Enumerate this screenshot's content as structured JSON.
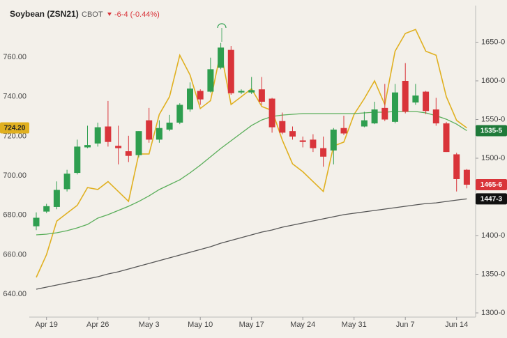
{
  "chart_data": {
    "type": "candlestick",
    "title": "Soybean (ZSN21)",
    "exchange": "CBOT",
    "change": "-6-4 (-0.44%)",
    "change_color": "#d9343a",
    "categories": [
      null,
      "Apr 19",
      null,
      null,
      null,
      null,
      "Apr 26",
      null,
      null,
      null,
      null,
      "May 3",
      null,
      null,
      null,
      null,
      "May 10",
      null,
      null,
      null,
      null,
      "May 17",
      null,
      null,
      null,
      null,
      "May 24",
      null,
      null,
      null,
      null,
      "May 31",
      null,
      null,
      null,
      null,
      "Jun 7",
      null,
      null,
      null,
      null,
      "Jun 14",
      null
    ],
    "ylim": [
      628.4,
      785.4
    ],
    "yticks": [
      {
        "value": 640,
        "label": "640.00"
      },
      {
        "value": 660,
        "label": "660.00"
      },
      {
        "value": 680,
        "label": "680.00"
      },
      {
        "value": 700,
        "label": "700.00"
      },
      {
        "value": 720,
        "label": "720.00"
      },
      {
        "value": 740,
        "label": "740.00"
      },
      {
        "value": 760,
        "label": "760.00"
      }
    ],
    "y2lim": [
      1294.6,
      1695.5
    ],
    "y2ticks": [
      {
        "value": 1300,
        "label": "1300-0"
      },
      {
        "value": 1350,
        "label": "1350-0"
      },
      {
        "value": 1400,
        "label": "1400-0"
      },
      {
        "value": 1450,
        "label": "1450-0"
      },
      {
        "value": 1500,
        "label": "1500-0"
      },
      {
        "value": 1550,
        "label": "1550-0"
      },
      {
        "value": 1600,
        "label": "1600-0"
      },
      {
        "value": 1650,
        "label": "1650-0"
      }
    ],
    "grid": false,
    "candles": {
      "axis": "y2",
      "up_color": "#2e9e4f",
      "down_color": "#d9343a",
      "open": [
        1412,
        1431,
        1437,
        1460,
        1481,
        1514,
        1519,
        1541,
        1516,
        1509,
        1504,
        1549,
        1524,
        1537,
        1546,
        1563,
        1587,
        1586,
        1617,
        1640,
        1585,
        1585,
        1589,
        1577,
        1548,
        1535,
        1523,
        1524,
        1513,
        1510,
        1539,
        null,
        1541,
        1545,
        1565,
        1547,
        1600,
        1572,
        1586,
        1563,
        1545,
        1505,
        1485
      ],
      "high": [
        1430,
        1441,
        1470,
        1485,
        1524,
        1542,
        1546,
        1574,
        1542,
        1529,
        1535,
        1565,
        1549,
        1556,
        1571,
        1598,
        1589,
        1630,
        1649,
        1645,
        1589,
        1605,
        1605,
        1578,
        1559,
        1541,
        1528,
        1531,
        1528,
        1539,
        1555,
        null,
        1560,
        1573,
        1596,
        1596,
        1623,
        1596,
        1587,
        1578,
        1547,
        1507,
        1486
      ],
      "low": [
        1407,
        1429,
        1434,
        1457,
        1479,
        1513,
        1515,
        1515,
        1492,
        1495,
        1501,
        1520,
        1520,
        1535,
        1544,
        1560,
        1569,
        1585,
        1615,
        1582,
        1583,
        1583,
        1569,
        1533,
        1531,
        1524,
        1514,
        1508,
        1489,
        1492,
        1530,
        null,
        1540,
        1544,
        1548,
        1545,
        1558,
        1569,
        1557,
        1542,
        1508,
        1457,
        1461
      ],
      "close": [
        1423,
        1438,
        1459,
        1480,
        1515,
        1517,
        1540,
        1521,
        1513,
        1503,
        1535,
        1524,
        1539,
        1546,
        1569,
        1590,
        1576,
        1615,
        1643,
        1584,
        1587,
        1588,
        1573,
        1540,
        1533,
        1528,
        1521,
        1513,
        1502,
        1537,
        1532,
        null,
        1549,
        1563,
        1550,
        1585,
        1560,
        1581,
        1561,
        1545,
        1508,
        1473,
        1465.75
      ],
      "last_label": "1465-6"
    },
    "lines": [
      {
        "axis": "y",
        "color": "#e0b020",
        "label_text_color": "#222",
        "last_label": "724.20",
        "values": [
          648.5,
          660,
          677,
          681,
          685,
          694,
          693,
          697,
          692,
          687,
          711,
          711,
          731,
          740,
          761,
          751,
          734,
          738,
          763,
          736,
          740,
          744,
          735,
          733,
          718,
          706,
          702,
          697,
          692,
          715,
          717,
          731,
          739,
          748,
          736,
          763,
          772,
          774,
          763,
          761,
          740,
          728,
          724.2
        ]
      },
      {
        "axis": "y2",
        "color": "#5aae5a",
        "badge_color": "#1f7a3a",
        "label_text_color": "#fff",
        "last_label": "1535-5",
        "values": [
          1400.9,
          1401.8,
          1403.6,
          1406.3,
          1409.9,
          1414.4,
          1422.5,
          1427,
          1432.4,
          1437.8,
          1444.1,
          1451.3,
          1459.5,
          1465.8,
          1472.1,
          1481.1,
          1491,
          1501.8,
          1512.6,
          1522.5,
          1532.4,
          1542.3,
          1549.5,
          1554,
          1555.8,
          1556.8,
          1557.7,
          1557.7,
          1557.7,
          1557.7,
          1557.7,
          1557.7,
          1558.6,
          1559.5,
          1559.5,
          1560.4,
          1560.4,
          1560.4,
          1558.6,
          1555,
          1550.4,
          1544.1,
          1535.6
        ]
      },
      {
        "axis": "y2",
        "color": "#555555",
        "badge_color": "#111111",
        "label_text_color": "#fff",
        "last_label": "1447-3",
        "values": [
          1330.6,
          1333.3,
          1336,
          1338.7,
          1341.4,
          1344.1,
          1346.8,
          1350.4,
          1353.2,
          1356.8,
          1360.4,
          1364,
          1367.6,
          1371.2,
          1374.8,
          1378.4,
          1382,
          1385.6,
          1390.1,
          1393.7,
          1397.3,
          1400.9,
          1404.5,
          1407.2,
          1410.8,
          1413.5,
          1416.2,
          1418.9,
          1421.6,
          1424.3,
          1427,
          1428.8,
          1430.6,
          1432.4,
          1434.2,
          1436,
          1437.8,
          1439.6,
          1441.4,
          1442.3,
          1444.1,
          1445.9,
          1447.4
        ]
      }
    ]
  }
}
